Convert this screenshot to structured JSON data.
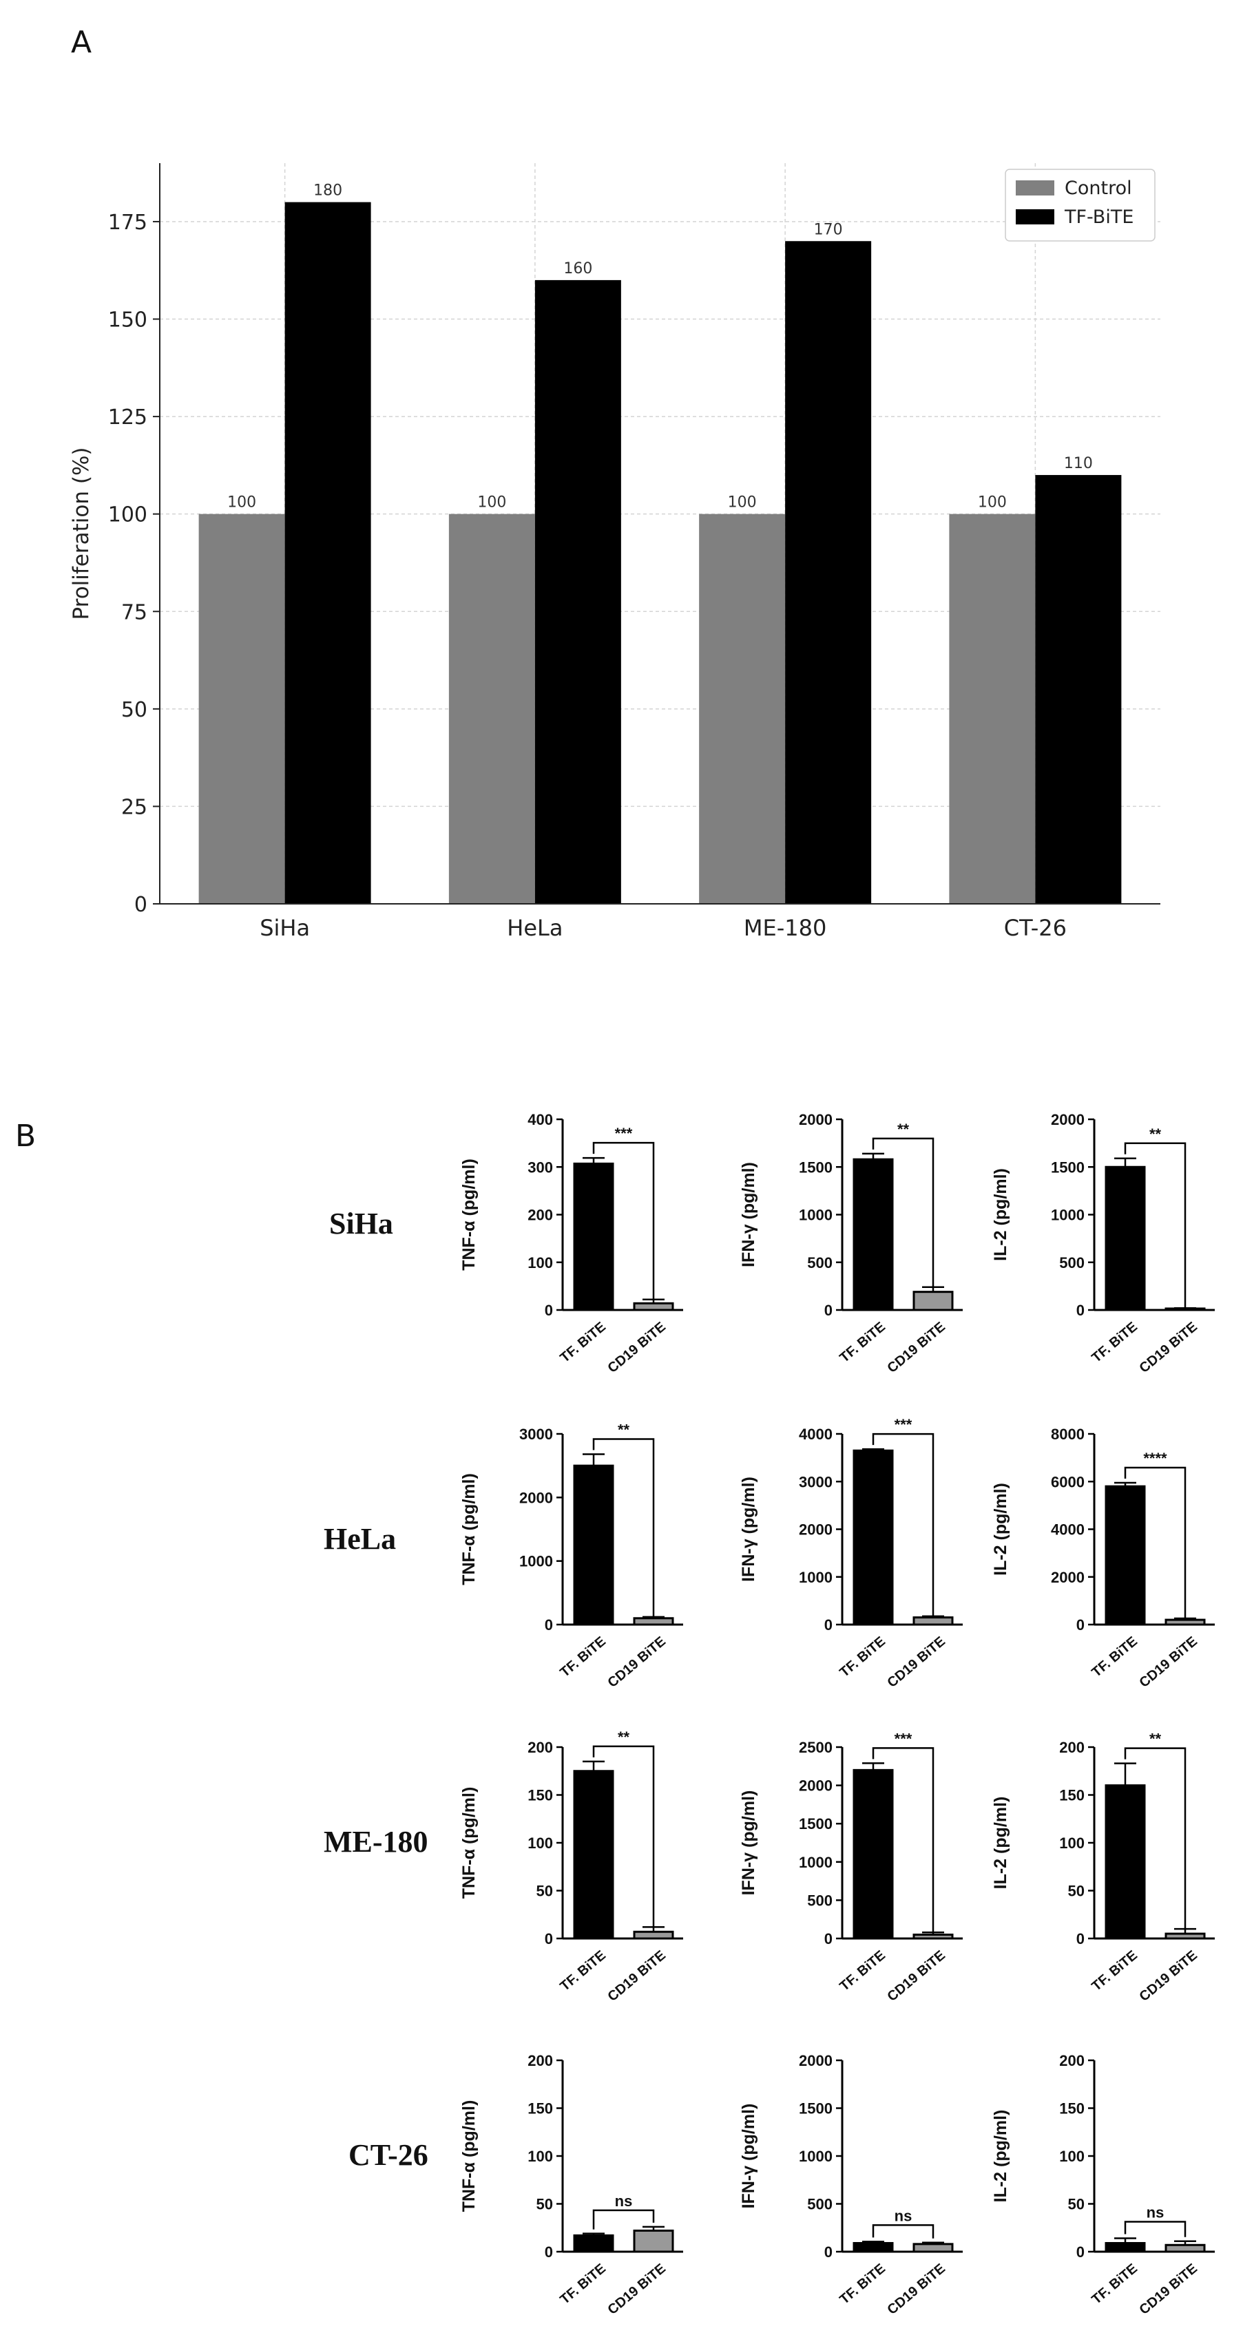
{
  "panels": {
    "a_letter": "A",
    "b_letter": "B"
  },
  "chart_data": [
    {
      "type": "bar",
      "panel": "A",
      "title": "",
      "xlabel": "",
      "ylabel": "Proliferation (%)",
      "categories": [
        "SiHa",
        "HeLa",
        "ME-180",
        "CT-26"
      ],
      "series": [
        {
          "name": "Control",
          "values": [
            100,
            100,
            100,
            100
          ],
          "color": "#808080"
        },
        {
          "name": "TF-BiTE",
          "values": [
            180,
            160,
            170,
            110
          ],
          "color": "#000000"
        }
      ],
      "ylim": [
        0,
        190
      ],
      "yticks": [
        0,
        25,
        50,
        75,
        100,
        125,
        150,
        175
      ],
      "grid": true,
      "legend": "top-right",
      "data_labels": true
    },
    {
      "type": "bar",
      "panel": "B",
      "categories": [
        "TF. BiTE",
        "CD19 BiTE"
      ],
      "bar_colors": [
        "#000000",
        "#999999"
      ],
      "row_labels": [
        "SiHa",
        "HeLa",
        "ME-180",
        "CT-26"
      ],
      "charts": [
        {
          "row": "SiHa",
          "ylabel": "TNF-α (pg/ml)",
          "ymax": 400,
          "yticks": [
            0,
            100,
            200,
            300,
            400
          ],
          "values": [
            307,
            14
          ],
          "errors": [
            12,
            8
          ],
          "sig": "***"
        },
        {
          "row": "SiHa",
          "ylabel": "IFN-γ (pg/ml)",
          "ymax": 2000,
          "yticks": [
            0,
            500,
            1000,
            1500,
            2000
          ],
          "values": [
            1580,
            190
          ],
          "errors": [
            60,
            50
          ],
          "sig": "**"
        },
        {
          "row": "SiHa",
          "ylabel": "IL-2 (pg/ml)",
          "ymax": 2000,
          "yticks": [
            0,
            500,
            1000,
            1500,
            2000
          ],
          "values": [
            1500,
            15
          ],
          "errors": [
            90,
            5
          ],
          "sig": "**"
        },
        {
          "row": "HeLa",
          "ylabel": "TNF-α (pg/ml)",
          "ymax": 3000,
          "yticks": [
            0,
            1000,
            2000,
            3000
          ],
          "values": [
            2500,
            100
          ],
          "errors": [
            180,
            20
          ],
          "sig": "**"
        },
        {
          "row": "HeLa",
          "ylabel": "IFN-γ (pg/ml)",
          "ymax": 4000,
          "yticks": [
            0,
            1000,
            2000,
            3000,
            4000
          ],
          "values": [
            3650,
            150
          ],
          "errors": [
            30,
            25
          ],
          "sig": "***"
        },
        {
          "row": "HeLa",
          "ylabel": "IL-2 (pg/ml)",
          "ymax": 8000,
          "yticks": [
            0,
            2000,
            4000,
            6000,
            8000
          ],
          "values": [
            5800,
            200
          ],
          "errors": [
            150,
            60
          ],
          "sig": "****"
        },
        {
          "row": "ME-180",
          "ylabel": "TNF-α (pg/ml)",
          "ymax": 200,
          "yticks": [
            0,
            50,
            100,
            150,
            200
          ],
          "values": [
            175,
            7
          ],
          "errors": [
            10,
            5
          ],
          "sig": "**"
        },
        {
          "row": "ME-180",
          "ylabel": "IFN-γ (pg/ml)",
          "ymax": 2500,
          "yticks": [
            0,
            500,
            1000,
            1500,
            2000,
            2500
          ],
          "values": [
            2200,
            50
          ],
          "errors": [
            90,
            30
          ],
          "sig": "***"
        },
        {
          "row": "ME-180",
          "ylabel": "IL-2 (pg/ml)",
          "ymax": 200,
          "yticks": [
            0,
            50,
            100,
            150,
            200
          ],
          "values": [
            160,
            5
          ],
          "errors": [
            23,
            5
          ],
          "sig": "**"
        },
        {
          "row": "CT-26",
          "ylabel": "TNF-α (pg/ml)",
          "ymax": 200,
          "yticks": [
            0,
            50,
            100,
            150,
            200
          ],
          "values": [
            17,
            22
          ],
          "errors": [
            2,
            4
          ],
          "sig": "ns"
        },
        {
          "row": "CT-26",
          "ylabel": "IFN-γ (pg/ml)",
          "ymax": 2000,
          "yticks": [
            0,
            500,
            1000,
            1500,
            2000
          ],
          "values": [
            90,
            80
          ],
          "errors": [
            15,
            15
          ],
          "sig": "ns"
        },
        {
          "row": "CT-26",
          "ylabel": "IL-2 (pg/ml)",
          "ymax": 200,
          "yticks": [
            0,
            50,
            100,
            150,
            200
          ],
          "values": [
            9,
            7
          ],
          "errors": [
            5,
            4
          ],
          "sig": "ns"
        }
      ]
    }
  ]
}
